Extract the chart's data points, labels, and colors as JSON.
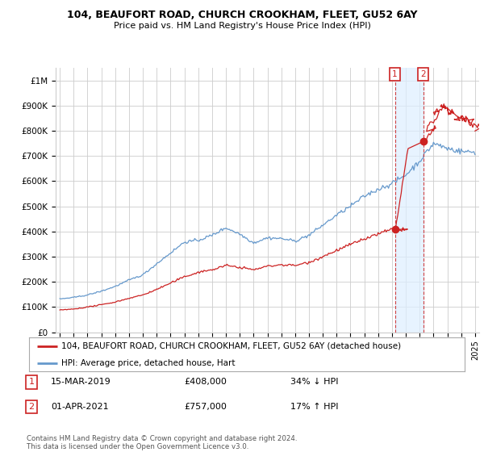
{
  "title": "104, BEAUFORT ROAD, CHURCH CROOKHAM, FLEET, GU52 6AY",
  "subtitle": "Price paid vs. HM Land Registry's House Price Index (HPI)",
  "background_color": "#ffffff",
  "grid_color": "#cccccc",
  "hpi_color": "#6699cc",
  "price_color": "#cc2222",
  "shade_color": "#ddeeff",
  "legend_label_price": "104, BEAUFORT ROAD, CHURCH CROOKHAM, FLEET, GU52 6AY (detached house)",
  "legend_label_hpi": "HPI: Average price, detached house, Hart",
  "annotation1_date": "15-MAR-2019",
  "annotation1_price": "£408,000",
  "annotation1_rel": "34% ↓ HPI",
  "annotation2_date": "01-APR-2021",
  "annotation2_price": "£757,000",
  "annotation2_rel": "17% ↑ HPI",
  "footer": "Contains HM Land Registry data © Crown copyright and database right 2024.\nThis data is licensed under the Open Government Licence v3.0.",
  "sale1_x": 2019.21,
  "sale1_y": 408000,
  "sale2_x": 2021.25,
  "sale2_y": 757000,
  "ylim": [
    0,
    1050000
  ],
  "yticks": [
    0,
    100000,
    200000,
    300000,
    400000,
    500000,
    600000,
    700000,
    800000,
    900000,
    1000000
  ],
  "ytick_labels": [
    "£0",
    "£100K",
    "£200K",
    "£300K",
    "£400K",
    "£500K",
    "£600K",
    "£700K",
    "£800K",
    "£900K",
    "£1M"
  ],
  "xlim_left": 1994.7,
  "xlim_right": 2025.3
}
